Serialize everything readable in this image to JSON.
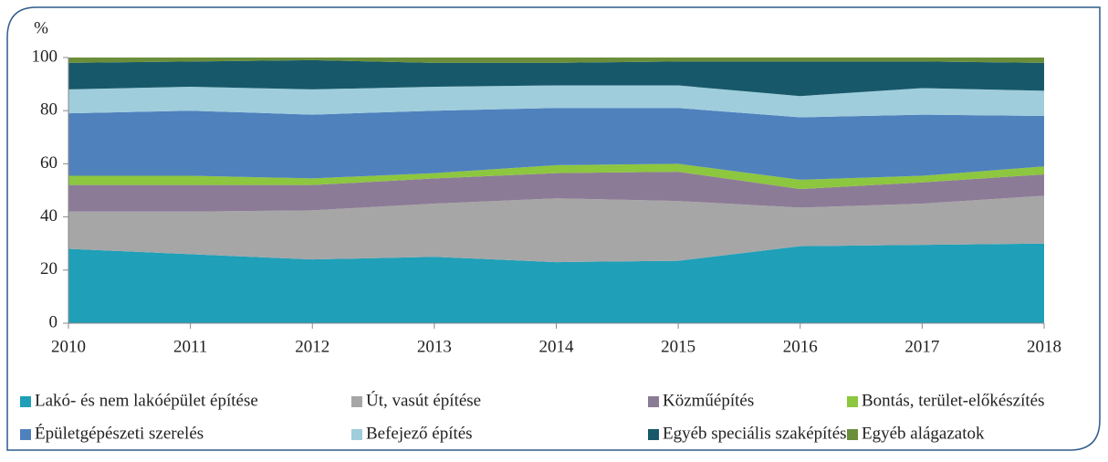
{
  "chart_data": {
    "type": "stacked_area",
    "y_axis_label": "%",
    "categories": [
      "2010",
      "2011",
      "2012",
      "2013",
      "2014",
      "2015",
      "2016",
      "2017",
      "2018"
    ],
    "ylim": [
      0,
      100
    ],
    "yticks": [
      0,
      20,
      40,
      60,
      80,
      100
    ],
    "legend": "bottom",
    "series": [
      {
        "name": "Lakó- és nem lakóépület építése",
        "color": "#1f9fb8",
        "values": [
          28,
          26,
          24,
          25,
          23,
          23.5,
          29,
          29.5,
          30
        ]
      },
      {
        "name": "Út, vasút építése",
        "color": "#a6a6a6",
        "values": [
          14,
          16,
          18.5,
          20,
          24,
          22.5,
          14.5,
          15.5,
          18
        ]
      },
      {
        "name": "Közműépítés",
        "color": "#8c7b96",
        "values": [
          10,
          10,
          9.5,
          9.5,
          9.5,
          11,
          7,
          8,
          8
        ]
      },
      {
        "name": "Bontás, terület-előkészítés",
        "color": "#8dc63f",
        "values": [
          3.5,
          3.5,
          2.5,
          2,
          3,
          3,
          3.5,
          2.5,
          3
        ]
      },
      {
        "name": "Épületgépészeti szerelés",
        "color": "#4f81bd",
        "values": [
          23.5,
          24.5,
          24,
          23.5,
          21.5,
          21,
          23.5,
          23,
          19
        ]
      },
      {
        "name": "Befejező építés",
        "color": "#9fcddc",
        "values": [
          9,
          9,
          9.5,
          9,
          8.5,
          8.5,
          8,
          10,
          9.5
        ]
      },
      {
        "name": "Egyéb speciális szaképítés",
        "color": "#17596a",
        "values": [
          10,
          9.5,
          11,
          9,
          8.5,
          9,
          13,
          10,
          10.5
        ]
      },
      {
        "name": "Egyéb alágazatok",
        "color": "#6b8e3a",
        "values": [
          2,
          1.5,
          1,
          2,
          2,
          1.5,
          1.5,
          1.5,
          2
        ]
      }
    ]
  }
}
